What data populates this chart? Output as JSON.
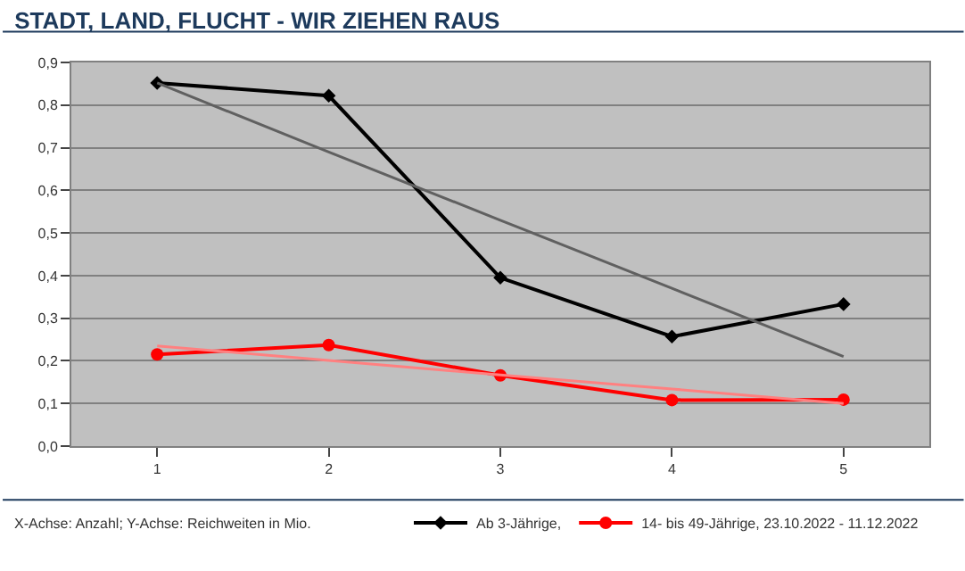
{
  "chart_data": {
    "type": "line",
    "title": "STADT, LAND, FLUCHT - WIR ZIEHEN RAUS",
    "x": [
      1,
      2,
      3,
      4,
      5
    ],
    "series": [
      {
        "name": "Ab 3-Jährige,",
        "color": "#000000",
        "marker": "diamond",
        "values": [
          0.852,
          0.822,
          0.395,
          0.257,
          0.333
        ]
      },
      {
        "name": "14- bis 49-Jährige, 23.10.2022 - 11.12.2022",
        "color": "#ff0000",
        "marker": "circle",
        "values": [
          0.215,
          0.237,
          0.166,
          0.108,
          0.109
        ]
      },
      {
        "color": "#606060",
        "marker": "none",
        "values": [
          0.852,
          0.69,
          0.53,
          0.37,
          0.21
        ]
      },
      {
        "color": "#ff8080",
        "marker": "none",
        "values": [
          0.235,
          0.201,
          0.167,
          0.134,
          0.1
        ]
      }
    ],
    "xlim": [
      0.5,
      5.5
    ],
    "xticks": [
      1,
      2,
      3,
      4,
      5
    ],
    "ylim": [
      0,
      0.9
    ],
    "yticks": [
      {
        "value": 0,
        "label": "0,0"
      },
      {
        "value": 0.1,
        "label": "0,1"
      },
      {
        "value": 0.2,
        "label": "0,2"
      },
      {
        "value": 0.3,
        "label": "0,3"
      },
      {
        "value": 0.4,
        "label": "0,4"
      },
      {
        "value": 0.5,
        "label": "0,5"
      },
      {
        "value": 0.6,
        "label": "0,6"
      },
      {
        "value": 0.7,
        "label": "0,7"
      },
      {
        "value": 0.8,
        "label": "0,8"
      },
      {
        "value": 0.9,
        "label": "0,9"
      }
    ],
    "grid": "y",
    "legend": "bottom right",
    "annotations": [
      "X-Achse: Anzahl; Y-Achse: Reichweiten in Mio."
    ]
  }
}
